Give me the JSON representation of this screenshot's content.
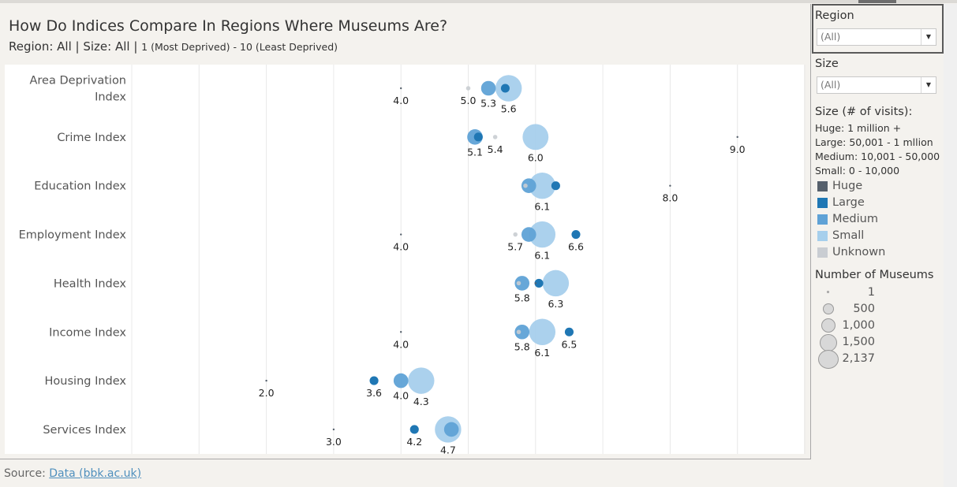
{
  "header": {
    "title": "How Do Indices Compare In Regions Where Museums Are?",
    "subtitle_main": "Region: All | Size: All |",
    "subtitle_small": "1 (Most Deprived) - 10 (Least Deprived)"
  },
  "source": {
    "prefix": "Source:",
    "link_text": "Data (bbk.ac.uk)"
  },
  "filters": {
    "region": {
      "title": "Region",
      "value": "(All)"
    },
    "size": {
      "title": "Size",
      "value": "(All)"
    }
  },
  "legend": {
    "size_title": "Size (# of visits):",
    "size_desc": [
      "Huge: 1 million +",
      "Large: 50,001 - 1 mllion",
      "Medium: 10,001 - 50,000",
      "Small: 0 - 10,000"
    ],
    "colors": [
      {
        "name": "Huge",
        "color": "#56606c"
      },
      {
        "name": "Large",
        "color": "#1f77b4"
      },
      {
        "name": "Medium",
        "color": "#5fa2d6"
      },
      {
        "name": "Small",
        "color": "#a6cfec"
      },
      {
        "name": "Unknown",
        "color": "#c9cdd2"
      }
    ],
    "count_title": "Number of Museums",
    "counts": [
      "1",
      "500",
      "1,000",
      "1,500",
      "2,137"
    ]
  },
  "chart_data": {
    "type": "scatter",
    "xlim": [
      0,
      10
    ],
    "grid": "vertical gridlines at every integer",
    "categories": [
      "Area Deprivation Index",
      "Crime Index",
      "Education Index",
      "Employment Index",
      "Health Index",
      "Income Index",
      "Housing Index",
      "Services Index"
    ],
    "category_labels": [
      [
        "Area Deprivation",
        "Index"
      ],
      [
        "Crime Index"
      ],
      [
        "Education Index"
      ],
      [
        "Employment Index"
      ],
      [
        "Health Index"
      ],
      [
        "Income Index"
      ],
      [
        "Housing Index"
      ],
      [
        "Services Index"
      ]
    ],
    "size_levels": [
      "Huge",
      "Large",
      "Medium",
      "Small",
      "Unknown"
    ],
    "points": [
      {
        "cat": 0,
        "size": "Huge",
        "x": 4.0,
        "count": 1,
        "label": "4.0"
      },
      {
        "cat": 0,
        "size": "Unknown",
        "x": 5.0,
        "count": 40,
        "label": "5.0"
      },
      {
        "cat": 0,
        "size": "Medium",
        "x": 5.3,
        "count": 450,
        "label": "5.3"
      },
      {
        "cat": 0,
        "size": "Small",
        "x": 5.6,
        "count": 1450,
        "label": "5.6"
      },
      {
        "cat": 0,
        "size": "Large",
        "x": 5.55,
        "count": 160,
        "label": ""
      },
      {
        "cat": 1,
        "size": "Medium",
        "x": 5.1,
        "count": 500,
        "label": "5.1"
      },
      {
        "cat": 1,
        "size": "Large",
        "x": 5.15,
        "count": 160,
        "label": ""
      },
      {
        "cat": 1,
        "size": "Unknown",
        "x": 5.4,
        "count": 40,
        "label": "5.4"
      },
      {
        "cat": 1,
        "size": "Small",
        "x": 6.0,
        "count": 1400,
        "label": "6.0"
      },
      {
        "cat": 1,
        "size": "Huge",
        "x": 9.0,
        "count": 1,
        "label": "9.0"
      },
      {
        "cat": 2,
        "size": "Unknown",
        "x": 5.85,
        "count": 40,
        "label": ""
      },
      {
        "cat": 2,
        "size": "Medium",
        "x": 5.9,
        "count": 450,
        "label": ""
      },
      {
        "cat": 2,
        "size": "Small",
        "x": 6.1,
        "count": 1450,
        "label": "6.1"
      },
      {
        "cat": 2,
        "size": "Large",
        "x": 6.3,
        "count": 160,
        "label": ""
      },
      {
        "cat": 2,
        "size": "Huge",
        "x": 8.0,
        "count": 1,
        "label": "8.0"
      },
      {
        "cat": 3,
        "size": "Huge",
        "x": 4.0,
        "count": 1,
        "label": "4.0"
      },
      {
        "cat": 3,
        "size": "Unknown",
        "x": 5.7,
        "count": 40,
        "label": "5.7"
      },
      {
        "cat": 3,
        "size": "Medium",
        "x": 5.9,
        "count": 450,
        "label": ""
      },
      {
        "cat": 3,
        "size": "Small",
        "x": 6.1,
        "count": 1450,
        "label": "6.1"
      },
      {
        "cat": 3,
        "size": "Large",
        "x": 6.6,
        "count": 160,
        "label": "6.6"
      },
      {
        "cat": 4,
        "size": "Unknown",
        "x": 5.75,
        "count": 40,
        "label": ""
      },
      {
        "cat": 4,
        "size": "Medium",
        "x": 5.8,
        "count": 450,
        "label": "5.8"
      },
      {
        "cat": 4,
        "size": "Huge",
        "x": 6.0,
        "count": 1,
        "label": ""
      },
      {
        "cat": 4,
        "size": "Large",
        "x": 6.05,
        "count": 160,
        "label": ""
      },
      {
        "cat": 4,
        "size": "Small",
        "x": 6.3,
        "count": 1450,
        "label": "6.3"
      },
      {
        "cat": 5,
        "size": "Huge",
        "x": 4.0,
        "count": 1,
        "label": "4.0"
      },
      {
        "cat": 5,
        "size": "Unknown",
        "x": 5.75,
        "count": 40,
        "label": ""
      },
      {
        "cat": 5,
        "size": "Medium",
        "x": 5.8,
        "count": 450,
        "label": "5.8"
      },
      {
        "cat": 5,
        "size": "Small",
        "x": 6.1,
        "count": 1450,
        "label": "6.1"
      },
      {
        "cat": 5,
        "size": "Large",
        "x": 6.5,
        "count": 160,
        "label": "6.5"
      },
      {
        "cat": 6,
        "size": "Huge",
        "x": 2.0,
        "count": 1,
        "label": "2.0"
      },
      {
        "cat": 6,
        "size": "Large",
        "x": 3.6,
        "count": 160,
        "label": "3.6"
      },
      {
        "cat": 6,
        "size": "Medium",
        "x": 4.0,
        "count": 450,
        "label": "4.0"
      },
      {
        "cat": 6,
        "size": "Small",
        "x": 4.3,
        "count": 1450,
        "label": "4.3"
      },
      {
        "cat": 7,
        "size": "Huge",
        "x": 3.0,
        "count": 1,
        "label": "3.0"
      },
      {
        "cat": 7,
        "size": "Large",
        "x": 4.2,
        "count": 160,
        "label": "4.2"
      },
      {
        "cat": 7,
        "size": "Small",
        "x": 4.7,
        "count": 1450,
        "label": "4.7"
      },
      {
        "cat": 7,
        "size": "Medium",
        "x": 4.75,
        "count": 450,
        "label": ""
      }
    ]
  }
}
